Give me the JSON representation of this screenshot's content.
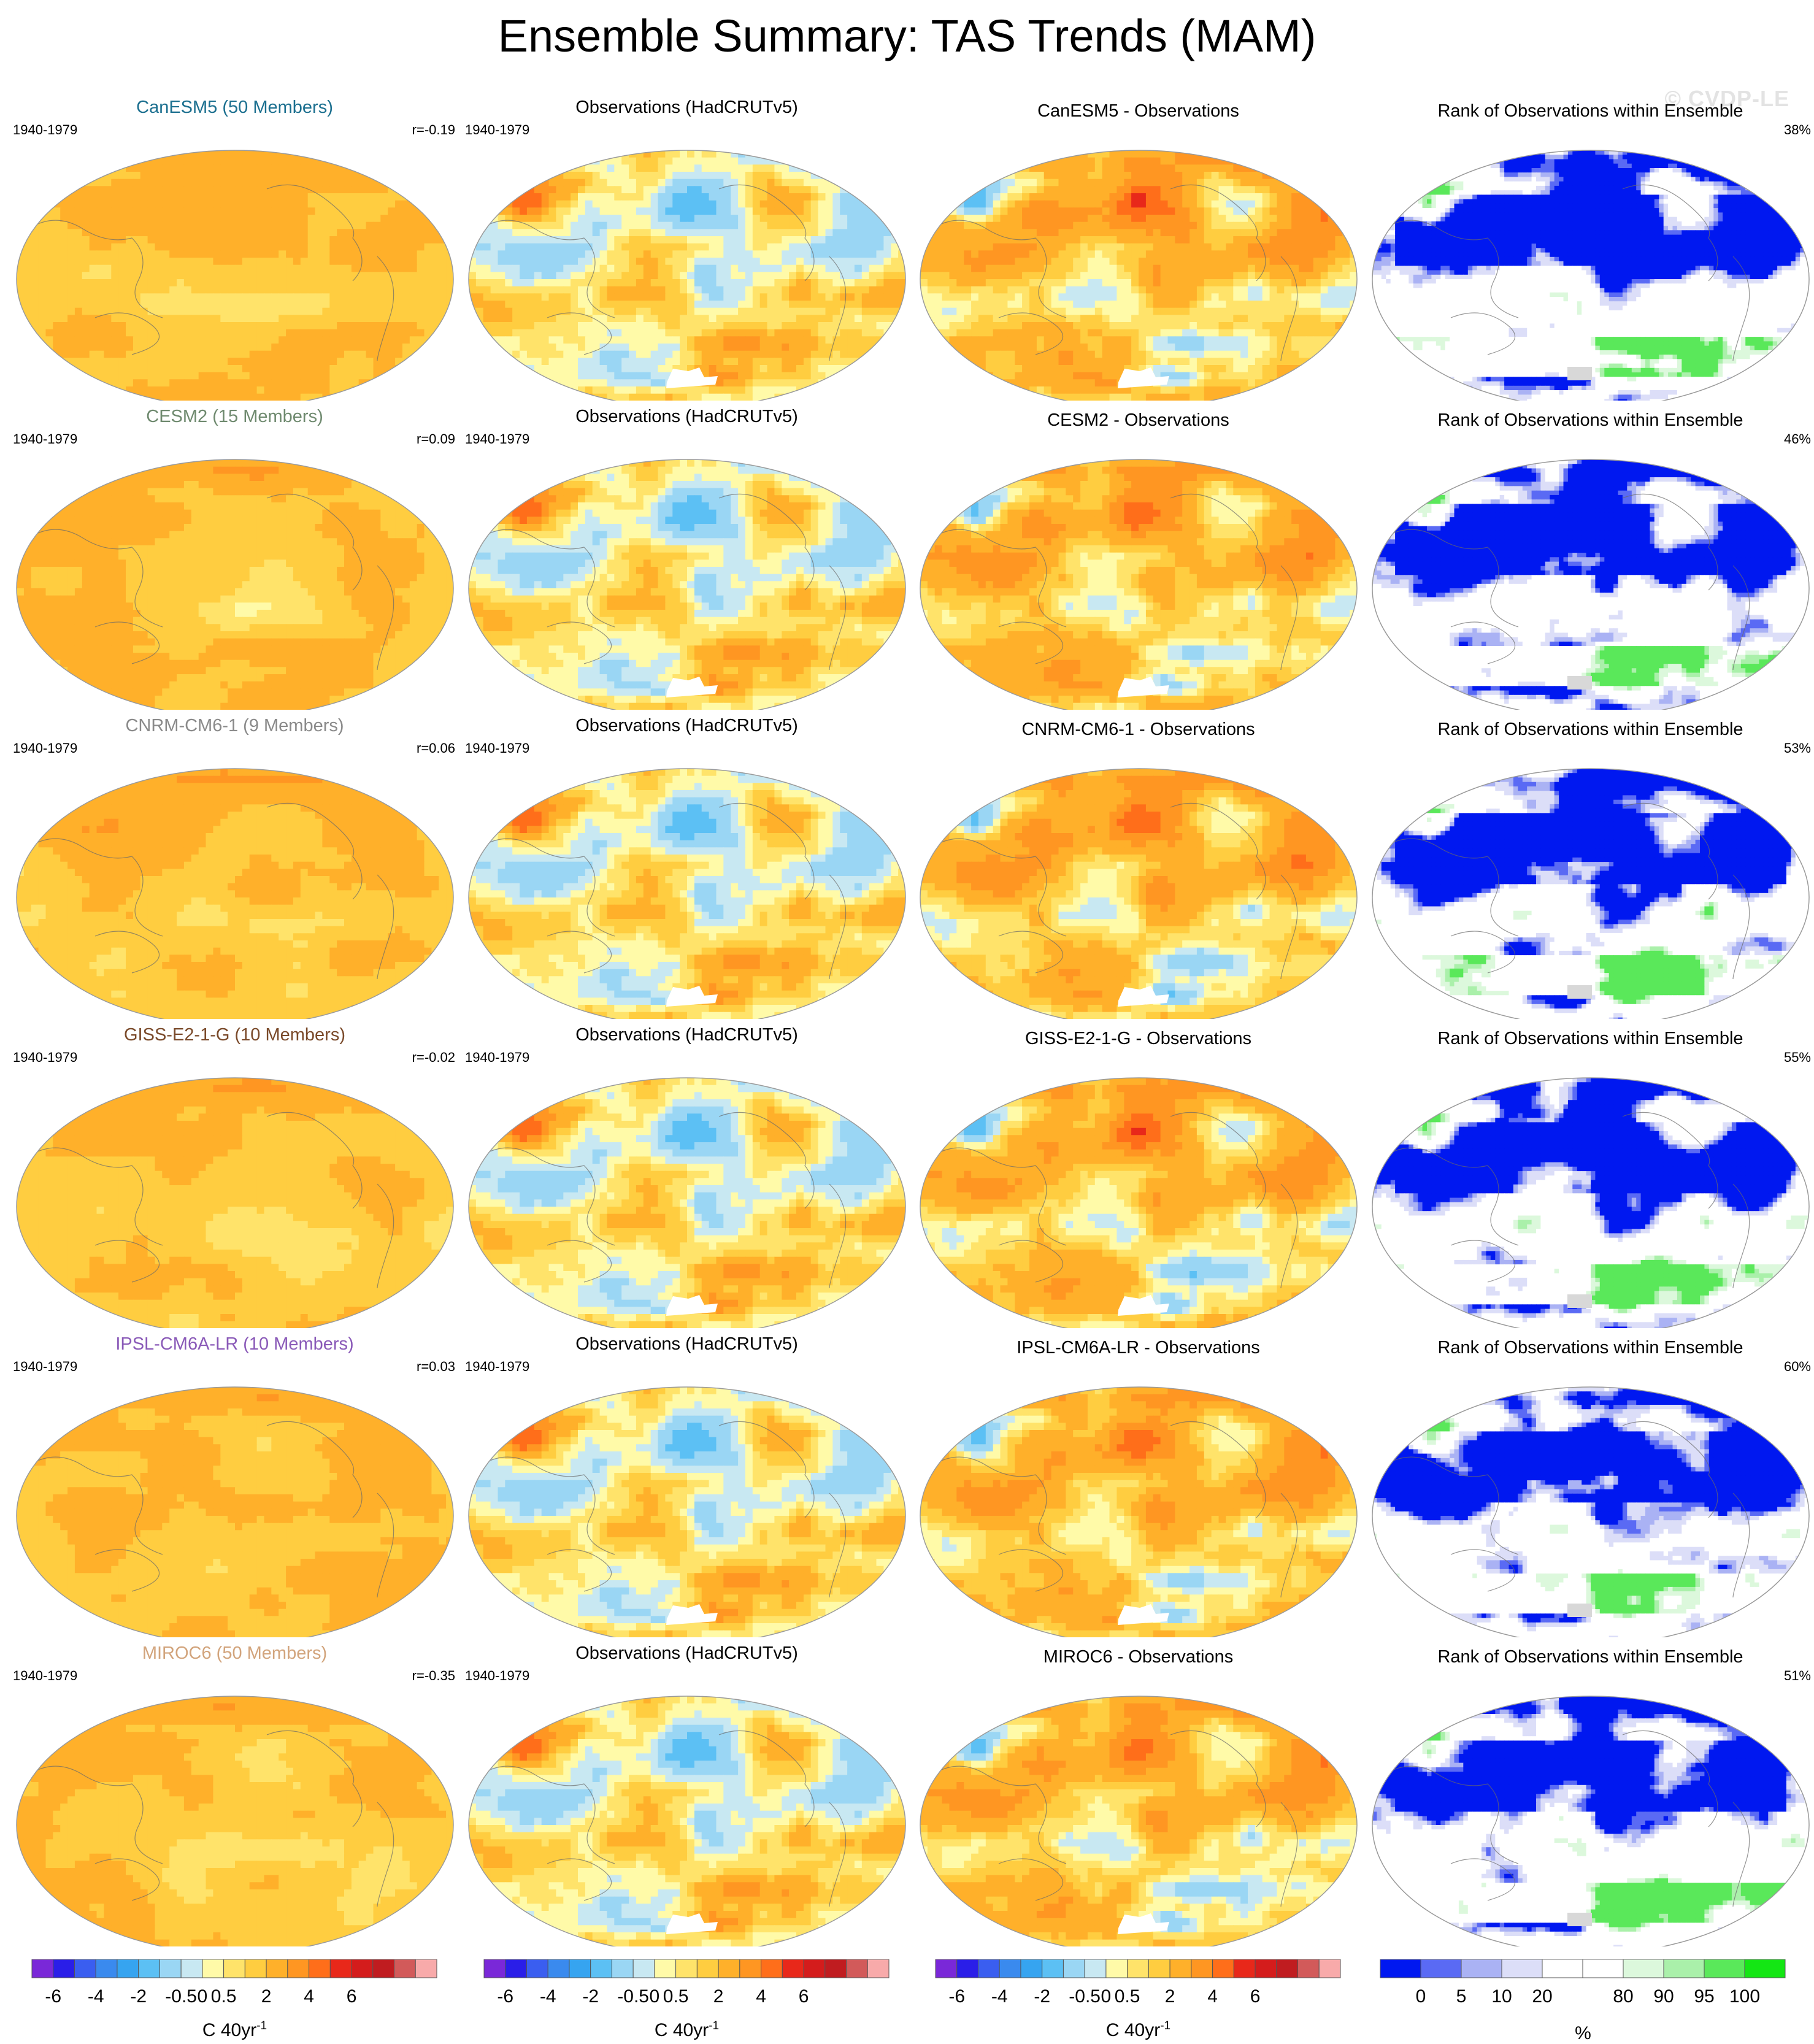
{
  "title": "Ensemble Summary: TAS Trends (MAM)",
  "watermark": "© CVDP-LE",
  "period": "1940-1979",
  "rows": [
    {
      "model_title": "CanESM5 (50 Members)",
      "model_color": "#1b6f8f",
      "r_label": "r=-0.19",
      "obs_title": "Observations (HadCRUTv5)",
      "diff_title": "CanESM5 - Observations",
      "rank_title": "Rank of Observations within Ensemble",
      "rank_pct": "38%"
    },
    {
      "model_title": "CESM2 (15 Members)",
      "model_color": "#6f8a6f",
      "r_label": "r=0.09",
      "obs_title": "Observations (HadCRUTv5)",
      "diff_title": "CESM2 - Observations",
      "rank_title": "Rank of Observations within Ensemble",
      "rank_pct": "46%"
    },
    {
      "model_title": "CNRM-CM6-1 (9 Members)",
      "model_color": "#8a8a8a",
      "r_label": "r=0.06",
      "obs_title": "Observations (HadCRUTv5)",
      "diff_title": "CNRM-CM6-1 - Observations",
      "rank_title": "Rank of Observations within Ensemble",
      "rank_pct": "53%"
    },
    {
      "model_title": "GISS-E2-1-G (10 Members)",
      "model_color": "#7a4a2a",
      "r_label": "r=-0.02",
      "obs_title": "Observations (HadCRUTv5)",
      "diff_title": "GISS-E2-1-G - Observations",
      "rank_title": "Rank of Observations within Ensemble",
      "rank_pct": "55%"
    },
    {
      "model_title": "IPSL-CM6A-LR (10 Members)",
      "model_color": "#8a5ab8",
      "r_label": "r=0.03",
      "obs_title": "Observations (HadCRUTv5)",
      "diff_title": "IPSL-CM6A-LR - Observations",
      "rank_title": "Rank of Observations within Ensemble",
      "rank_pct": "60%"
    },
    {
      "model_title": "MIROC6 (50 Members)",
      "model_color": "#d2a47c",
      "r_label": "r=-0.35",
      "obs_title": "Observations (HadCRUTv5)",
      "diff_title": "MIROC6 - Observations",
      "rank_title": "Rank of Observations within Ensemble",
      "rank_pct": "51%"
    }
  ],
  "colorbars": {
    "trend": {
      "colors": [
        "#7a28d8",
        "#2a1ee8",
        "#3a5ef0",
        "#3a8aee",
        "#36a4f0",
        "#5cc0f4",
        "#9ad6f4",
        "#c8e8f2",
        "#fffaa8",
        "#ffe36a",
        "#ffcd40",
        "#ffb02a",
        "#ff9622",
        "#ff6e1a",
        "#e8281a",
        "#d41c1c",
        "#c01c20",
        "#d25a5a",
        "#f8aaaa"
      ],
      "ticks": [
        "-6",
        "-4",
        "-2",
        "-0.5",
        "0",
        "0.5",
        "2",
        "4",
        "6"
      ],
      "label": "C 40yr",
      "label_sup": "-1"
    },
    "rank": {
      "colors": [
        "#0018f0",
        "#5a6af4",
        "#aab2f4",
        "#dcdef8",
        "#ffffff",
        "#ffffff",
        "#dcf8dc",
        "#aaf0aa",
        "#5ae85a",
        "#14e614"
      ],
      "ticks": [
        "0",
        "5",
        "10",
        "20",
        "80",
        "90",
        "95",
        "100"
      ],
      "label": "%"
    }
  },
  "chart_data": {
    "type": "heatmap",
    "title": "Ensemble Summary: TAS Trends (MAM)",
    "layout": "6 model rows x 4 map columns (Robinson projection)",
    "columns": [
      "Ensemble mean trend",
      "Observations (HadCRUTv5)",
      "Model - Observations",
      "Rank of Observations within Ensemble"
    ],
    "period": "1940-1979",
    "trend_units": "C 40yr-1",
    "trend_color_levels": [
      -6,
      -4,
      -2,
      -0.5,
      0,
      0.5,
      2,
      4,
      6
    ],
    "rank_color_levels": [
      0,
      5,
      10,
      20,
      80,
      90,
      95,
      100
    ],
    "pattern_correlation_r": [
      {
        "model": "CanESM5",
        "members": 50,
        "r": -0.19
      },
      {
        "model": "CESM2",
        "members": 15,
        "r": 0.09
      },
      {
        "model": "CNRM-CM6-1",
        "members": 9,
        "r": 0.06
      },
      {
        "model": "GISS-E2-1-G",
        "members": 10,
        "r": -0.02
      },
      {
        "model": "IPSL-CM6A-LR",
        "members": 10,
        "r": 0.03
      },
      {
        "model": "MIROC6",
        "members": 50,
        "r": -0.35
      }
    ],
    "rank_area_fraction_percent": [
      {
        "model": "CanESM5",
        "value": 38
      },
      {
        "model": "CESM2",
        "value": 46
      },
      {
        "model": "CNRM-CM6-1",
        "value": 53
      },
      {
        "model": "GISS-E2-1-G",
        "value": 55
      },
      {
        "model": "IPSL-CM6A-LR",
        "value": 60
      },
      {
        "model": "MIROC6",
        "value": 51
      }
    ]
  }
}
